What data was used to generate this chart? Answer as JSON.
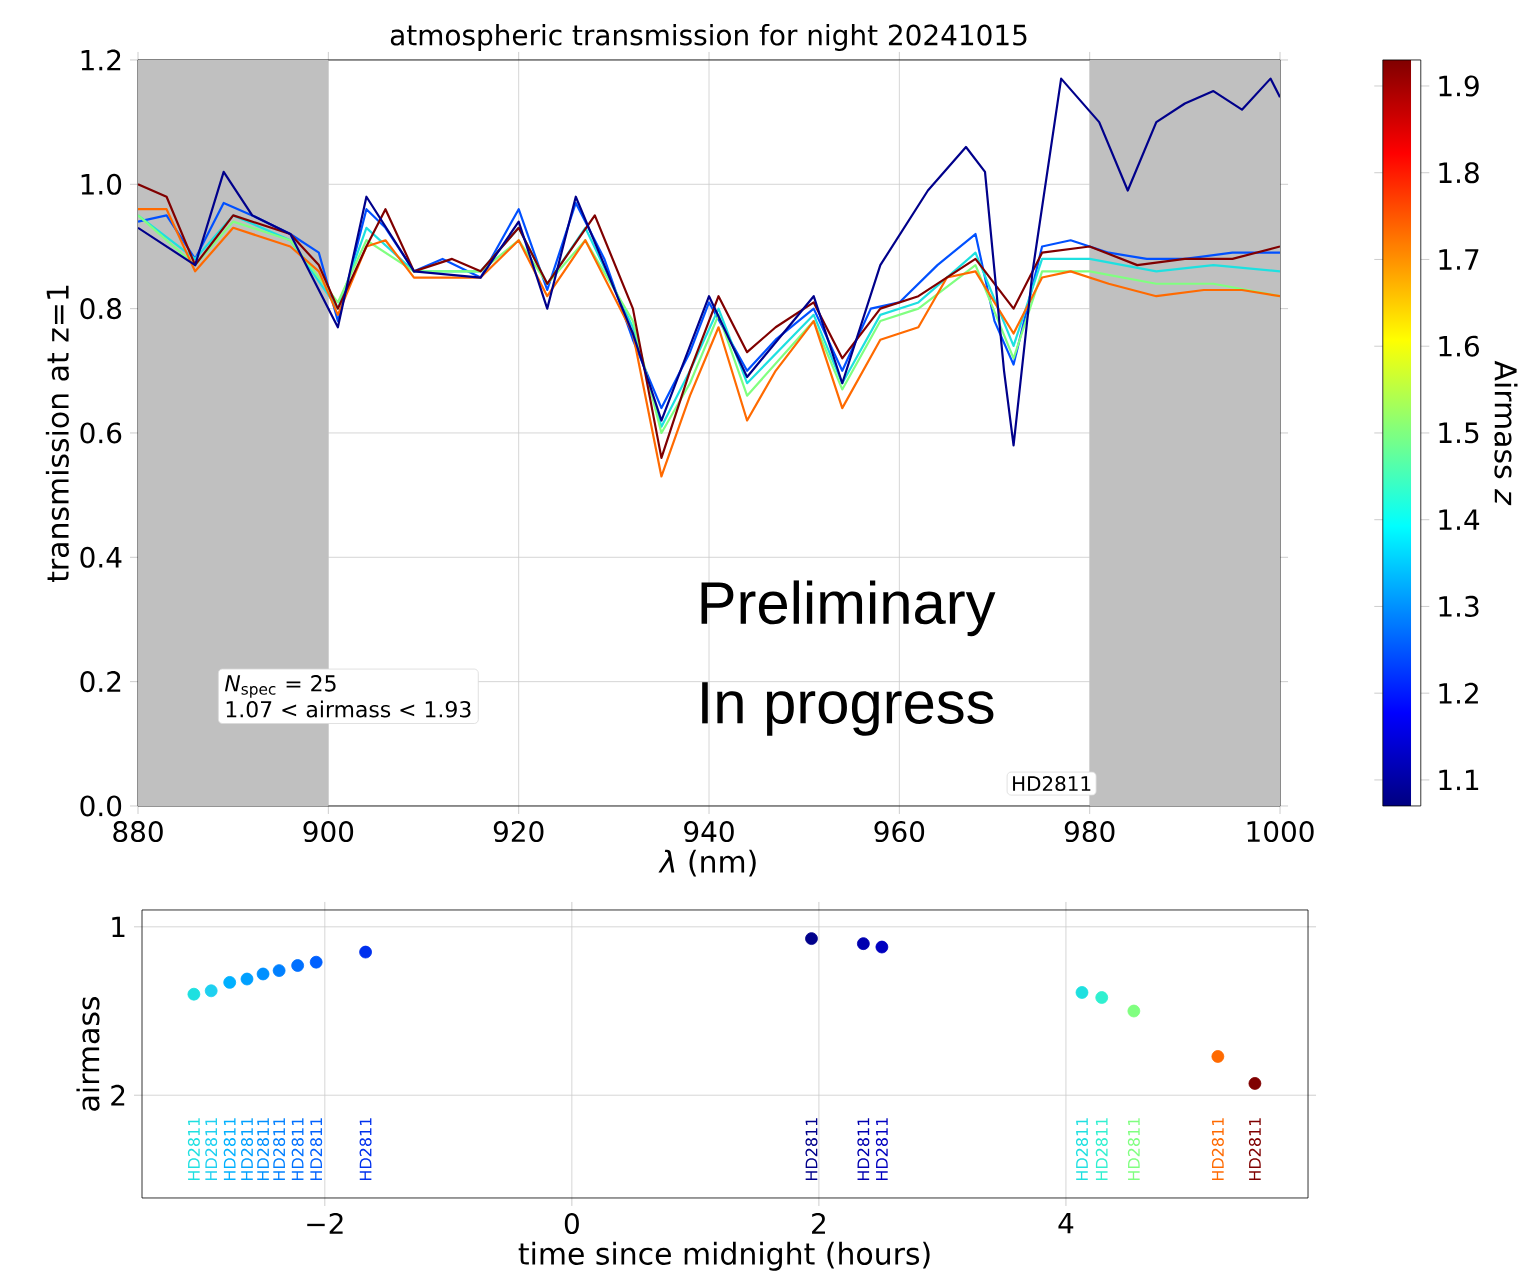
{
  "chart_data": [
    {
      "type": "line",
      "title": "atmospheric transmission for night 20241015",
      "xlabel": "*λ* (nm)",
      "ylabel": "transmission at z=1",
      "clabel": "Airmass *z*",
      "clim": [
        1.07,
        1.93
      ],
      "cticks": [
        1.1,
        1.2,
        1.3,
        1.4,
        1.5,
        1.6,
        1.7,
        1.8,
        1.9
      ],
      "xlim": [
        880,
        1000
      ],
      "ylim": [
        0,
        1.2
      ],
      "xticks": [
        880,
        900,
        920,
        940,
        960,
        980,
        1000
      ],
      "yticks": [
        {
          "value": 0,
          "label": "0.0"
        },
        {
          "value": 0.2,
          "label": "0.2"
        },
        {
          "value": 0.4,
          "label": "0.4"
        },
        {
          "value": 0.6,
          "label": "0.6"
        },
        {
          "value": 0.8,
          "label": "0.8"
        },
        {
          "value": 1,
          "label": "1.0"
        },
        {
          "value": 1.2,
          "label": "1.2"
        }
      ],
      "grid": true,
      "marker": "none",
      "line_style": "solid",
      "bands": [
        {
          "axis": "x",
          "from": 880,
          "to": 900,
          "color": "#c0c0c0"
        },
        {
          "axis": "x",
          "from": 980,
          "to": 1000,
          "color": "#c0c0c0"
        }
      ],
      "annotations": [
        "*N*$_{spec}$ = 25",
        "1.07 < airmass < 1.93",
        "Preliminary",
        "In progress",
        "HD2811"
      ],
      "series": [
        {
          "color": "#0050ff",
          "x": [
            880,
            883,
            886,
            889,
            892,
            896,
            899,
            901,
            904,
            906,
            909,
            912,
            916,
            920,
            923,
            926,
            929,
            932,
            935,
            938,
            940,
            944,
            947,
            951,
            954,
            957,
            960,
            964,
            968,
            970,
            972,
            975,
            978,
            982,
            986,
            990,
            995,
            1000
          ],
          "values": [
            0.94,
            0.95,
            0.88,
            0.97,
            0.95,
            0.92,
            0.89,
            0.78,
            0.96,
            0.93,
            0.86,
            0.88,
            0.85,
            0.96,
            0.83,
            0.97,
            0.88,
            0.75,
            0.64,
            0.73,
            0.81,
            0.7,
            0.75,
            0.8,
            0.7,
            0.8,
            0.81,
            0.87,
            0.92,
            0.78,
            0.71,
            0.9,
            0.91,
            0.89,
            0.88,
            0.88,
            0.89,
            0.89
          ]
        },
        {
          "color": "#1ee0e0",
          "x": [
            880,
            886,
            890,
            896,
            901,
            904,
            909,
            916,
            920,
            923,
            927,
            932,
            935,
            938,
            941,
            944,
            951,
            954,
            958,
            962,
            968,
            972,
            975,
            980,
            987,
            993,
            1000
          ],
          "values": [
            0.95,
            0.88,
            0.95,
            0.91,
            0.8,
            0.93,
            0.86,
            0.86,
            0.93,
            0.84,
            0.93,
            0.77,
            0.61,
            0.7,
            0.8,
            0.68,
            0.79,
            0.68,
            0.79,
            0.81,
            0.89,
            0.74,
            0.88,
            0.88,
            0.86,
            0.87,
            0.86
          ]
        },
        {
          "color": "#80ff80",
          "x": [
            880,
            886,
            890,
            896,
            901,
            904,
            909,
            916,
            920,
            923,
            927,
            932,
            935,
            938,
            941,
            944,
            951,
            954,
            958,
            962,
            968,
            972,
            975,
            980,
            987,
            993,
            1000
          ],
          "values": [
            0.95,
            0.87,
            0.94,
            0.91,
            0.81,
            0.91,
            0.86,
            0.86,
            0.91,
            0.84,
            0.91,
            0.78,
            0.6,
            0.68,
            0.79,
            0.66,
            0.78,
            0.67,
            0.78,
            0.8,
            0.87,
            0.72,
            0.86,
            0.86,
            0.84,
            0.84,
            0.82
          ]
        },
        {
          "color": "#ff6a00",
          "x": [
            880,
            883,
            886,
            890,
            896,
            899,
            901,
            904,
            906,
            909,
            913,
            916,
            920,
            923,
            927,
            932,
            935,
            938,
            941,
            944,
            947,
            951,
            954,
            958,
            962,
            965,
            968,
            972,
            975,
            978,
            982,
            987,
            992,
            996,
            1000
          ],
          "values": [
            0.96,
            0.96,
            0.86,
            0.93,
            0.9,
            0.86,
            0.79,
            0.9,
            0.91,
            0.85,
            0.85,
            0.85,
            0.91,
            0.82,
            0.91,
            0.76,
            0.53,
            0.66,
            0.77,
            0.62,
            0.7,
            0.78,
            0.64,
            0.75,
            0.77,
            0.85,
            0.86,
            0.76,
            0.85,
            0.86,
            0.84,
            0.82,
            0.83,
            0.83,
            0.82
          ]
        },
        {
          "color": "#800000",
          "x": [
            880,
            883,
            886,
            890,
            896,
            899,
            901,
            904,
            906,
            909,
            913,
            916,
            920,
            923,
            928,
            932,
            935,
            938,
            941,
            944,
            947,
            951,
            954,
            958,
            962,
            968,
            972,
            975,
            980,
            985,
            990,
            995,
            1000
          ],
          "values": [
            1.0,
            0.98,
            0.87,
            0.95,
            0.92,
            0.87,
            0.8,
            0.9,
            0.96,
            0.86,
            0.88,
            0.86,
            0.93,
            0.84,
            0.95,
            0.8,
            0.56,
            0.7,
            0.82,
            0.73,
            0.77,
            0.81,
            0.72,
            0.8,
            0.82,
            0.88,
            0.8,
            0.89,
            0.9,
            0.87,
            0.88,
            0.88,
            0.9
          ]
        },
        {
          "color": "#00008b",
          "x": [
            880,
            886,
            889,
            892,
            896,
            901,
            904,
            909,
            916,
            920,
            923,
            926,
            932,
            935,
            940,
            944,
            951,
            954,
            958,
            963,
            967,
            969,
            971,
            972,
            974,
            977,
            981,
            984,
            987,
            990,
            993,
            996,
            999,
            1000
          ],
          "values": [
            0.93,
            0.87,
            1.02,
            0.95,
            0.92,
            0.77,
            0.98,
            0.86,
            0.85,
            0.94,
            0.8,
            0.98,
            0.76,
            0.62,
            0.82,
            0.69,
            0.82,
            0.68,
            0.87,
            0.99,
            1.06,
            1.02,
            0.7,
            0.58,
            0.86,
            1.17,
            1.1,
            0.99,
            1.1,
            1.13,
            1.15,
            1.12,
            1.17,
            1.14
          ]
        }
      ]
    },
    {
      "type": "scatter",
      "xlabel": "time since midnight (hours)",
      "ylabel": "airmass",
      "xlim": [
        -3.48,
        5.96
      ],
      "ylim": [
        2.61,
        0.9
      ],
      "xticks": [
        {
          "value": -2,
          "label": "−2"
        },
        0,
        2,
        4
      ],
      "yticks": [
        1,
        2
      ],
      "grid": true,
      "marker": "circle",
      "x": [
        -3.06,
        -2.92,
        -2.77,
        -2.63,
        -2.5,
        -2.37,
        -2.22,
        -2.07,
        -1.67,
        1.94,
        2.36,
        2.51,
        4.13,
        4.29,
        4.55,
        5.23,
        5.53
      ],
      "values": [
        1.4,
        1.38,
        1.33,
        1.31,
        1.28,
        1.26,
        1.23,
        1.21,
        1.15,
        1.07,
        1.1,
        1.12,
        1.39,
        1.42,
        1.5,
        1.77,
        1.93
      ],
      "colors": [
        "#1ee0e0",
        "#1ed0f0",
        "#00b0ff",
        "#00a0ff",
        "#0090ff",
        "#0080ff",
        "#0070ff",
        "#0060ff",
        "#0030ee",
        "#00008b",
        "#0000b0",
        "#0000c0",
        "#1ee0e0",
        "#30f0d0",
        "#80ff80",
        "#ff6a00",
        "#800000"
      ],
      "annotations": [
        "HD2811",
        "HD2811",
        "HD2811",
        "HD2811",
        "HD2811",
        "HD2811",
        "HD2811",
        "HD2811",
        "HD2811",
        "HD2811",
        "HD2811",
        "HD2811",
        "HD2811",
        "HD2811",
        "HD2811",
        "HD2811",
        "HD2811"
      ]
    }
  ]
}
